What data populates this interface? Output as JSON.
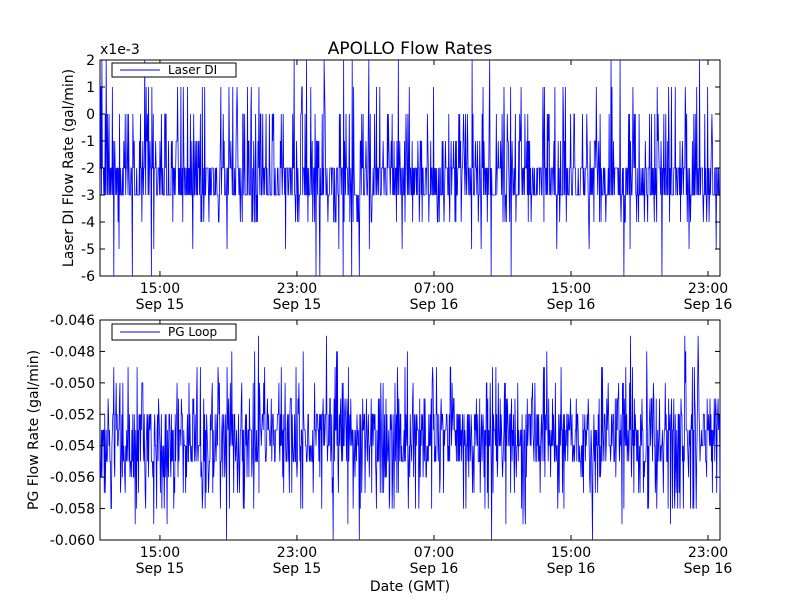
{
  "chart_data": [
    {
      "type": "line",
      "title": "APOLLO Flow Rates",
      "ylabel": "Laser DI Flow Rate (gal/min)",
      "xlabel": "",
      "y_multiplier_label": "x1e-3",
      "ylim": [
        -6,
        2
      ],
      "yticks": [
        "2",
        "1",
        "0",
        "-1",
        "-2",
        "-3",
        "-4",
        "-5",
        "-6"
      ],
      "ytick_values": [
        2,
        1,
        0,
        -1,
        -2,
        -3,
        -4,
        -5,
        -6
      ],
      "xticks": [
        {
          "time": "15:00",
          "date": "Sep 15"
        },
        {
          "time": "23:00",
          "date": "Sep 15"
        },
        {
          "time": "07:00",
          "date": "Sep 16"
        },
        {
          "time": "15:00",
          "date": "Sep 16"
        },
        {
          "time": "23:00",
          "date": "Sep 16"
        }
      ],
      "xtick_hours": [
        15,
        23,
        31,
        39,
        47
      ],
      "xlim_hours": [
        11.5,
        47.7
      ],
      "legend": {
        "placement": "top-left",
        "entries": [
          "Laser DI"
        ]
      },
      "series": [
        {
          "name": "Laser DI",
          "color": "#0000ff",
          "quantization": 1,
          "base_values": [
            -3,
            -2
          ],
          "excursion_values": [
            -6,
            -5,
            -4,
            -1,
            0,
            1,
            2
          ],
          "excursion_probability": [
            0.02,
            0.05,
            0.22,
            0.3,
            0.26,
            0.12,
            0.03
          ],
          "samples_per_hour": 36
        }
      ]
    },
    {
      "type": "line",
      "title": "",
      "ylabel": "PG Flow Rate (gal/min)",
      "xlabel": "Date (GMT)",
      "ylim": [
        -0.06,
        -0.046
      ],
      "yticks": [
        "-0.046",
        "-0.048",
        "-0.050",
        "-0.052",
        "-0.054",
        "-0.056",
        "-0.058",
        "-0.060"
      ],
      "ytick_values": [
        -0.046,
        -0.048,
        -0.05,
        -0.052,
        -0.054,
        -0.056,
        -0.058,
        -0.06
      ],
      "xticks": [
        {
          "time": "15:00",
          "date": "Sep 15"
        },
        {
          "time": "23:00",
          "date": "Sep 15"
        },
        {
          "time": "07:00",
          "date": "Sep 16"
        },
        {
          "time": "15:00",
          "date": "Sep 16"
        },
        {
          "time": "23:00",
          "date": "Sep 16"
        }
      ],
      "xtick_hours": [
        15,
        23,
        31,
        39,
        47
      ],
      "xlim_hours": [
        11.5,
        47.7
      ],
      "legend": {
        "placement": "top-left",
        "entries": [
          "PG Loop"
        ]
      },
      "series": [
        {
          "name": "PG Loop",
          "color": "#0000ff",
          "quantization": 0.001,
          "base_values": [
            -0.055,
            -0.054,
            -0.053,
            -0.052
          ],
          "excursion_values": [
            -0.06,
            -0.059,
            -0.058,
            -0.057,
            -0.056,
            -0.051,
            -0.05,
            -0.049,
            -0.048,
            -0.047
          ],
          "excursion_probability": [
            0.01,
            0.03,
            0.1,
            0.18,
            0.18,
            0.22,
            0.14,
            0.09,
            0.04,
            0.01
          ],
          "samples_per_hour": 36
        }
      ]
    }
  ]
}
